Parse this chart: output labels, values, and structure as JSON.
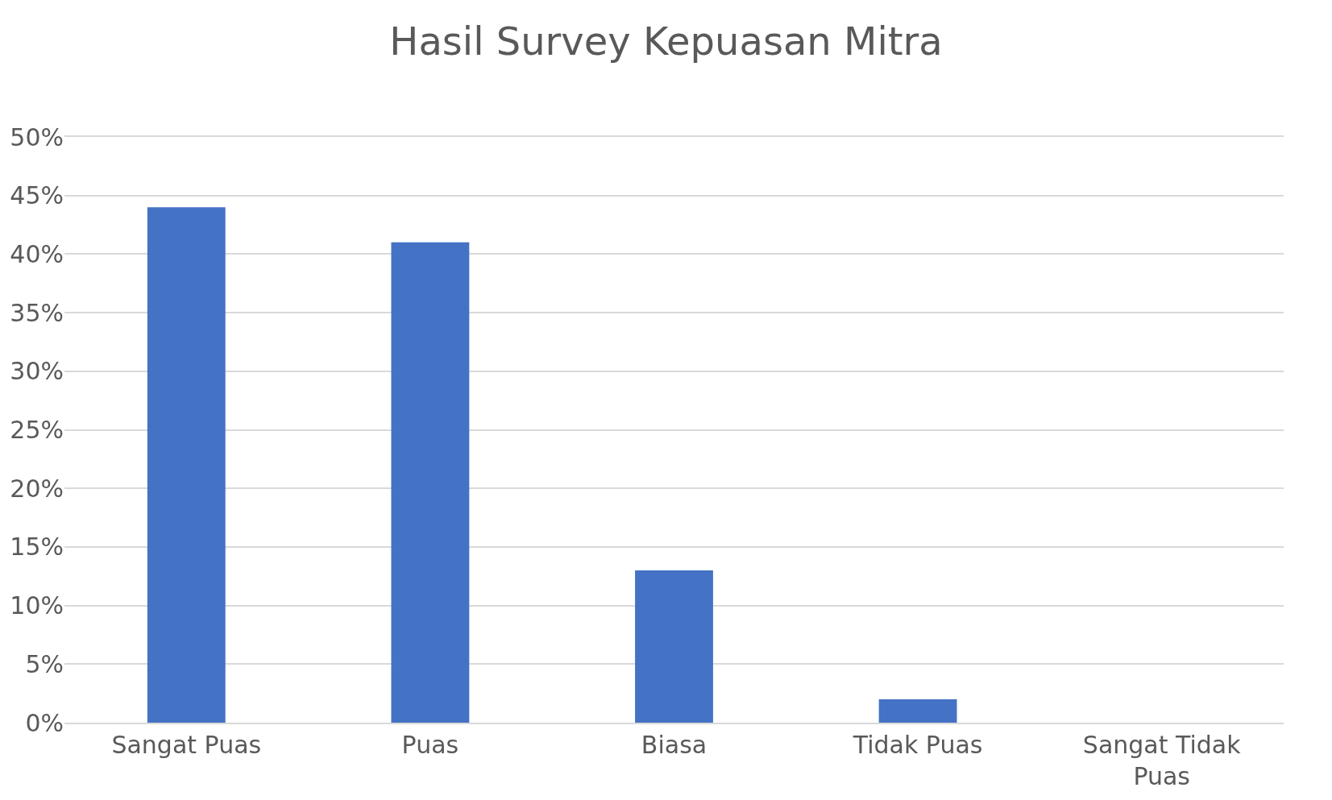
{
  "chart_data": {
    "type": "bar",
    "title": "Hasil Survey Kepuasan Mitra",
    "categories": [
      "Sangat Puas",
      "Puas",
      "Biasa",
      "Tidak Puas",
      "Sangat Tidak Puas"
    ],
    "values": [
      44,
      41,
      13,
      2,
      0
    ],
    "color": "#4472c4",
    "ylim": [
      0,
      50
    ],
    "yticks": [
      {
        "value": 0,
        "label": "0%"
      },
      {
        "value": 5,
        "label": "5%"
      },
      {
        "value": 10,
        "label": "10%"
      },
      {
        "value": 15,
        "label": "15%"
      },
      {
        "value": 20,
        "label": "20%"
      },
      {
        "value": 25,
        "label": "25%"
      },
      {
        "value": 30,
        "label": "30%"
      },
      {
        "value": 35,
        "label": "35%"
      },
      {
        "value": 40,
        "label": "40%"
      },
      {
        "value": 45,
        "label": "45%"
      },
      {
        "value": 50,
        "label": "50%"
      }
    ],
    "grid": "y"
  }
}
